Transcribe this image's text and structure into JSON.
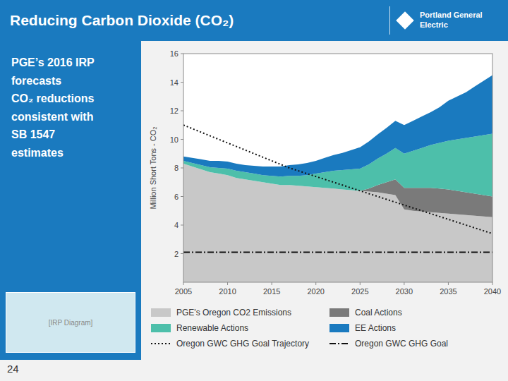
{
  "chart_data": {
    "type": "area",
    "stacked": true,
    "grid": false,
    "title": "Reducing Carbon Dioxide (CO₂)",
    "ylabel": "Million Short Tons - CO₂",
    "annotations": [
      "Portland General Electric",
      "PGE’s 2016 IRP\nforecasts\nCO₂ reductions\nconsistent with\nSB 1547\nestimates",
      "[IRP Diagram]",
      "24"
    ],
    "x": [
      2005,
      2006,
      2007,
      2008,
      2009,
      2010,
      2011,
      2012,
      2013,
      2014,
      2015,
      2016,
      2017,
      2018,
      2019,
      2020,
      2021,
      2022,
      2023,
      2024,
      2025,
      2026,
      2027,
      2028,
      2029,
      2030,
      2031,
      2032,
      2033,
      2034,
      2035,
      2036,
      2037,
      2038,
      2039,
      2040
    ],
    "xlim": [
      2005,
      2040
    ],
    "xticks": [
      2005,
      2010,
      2015,
      2020,
      2025,
      2030,
      2035,
      2040
    ],
    "ylim": [
      0,
      16
    ],
    "yticks": [
      2,
      4,
      6,
      8,
      10,
      12,
      14,
      16
    ],
    "series": [
      {
        "name": "PGE's Oregon CO2 Emissions",
        "type": "area",
        "color": "#c8c8c8",
        "values": [
          8.3,
          8.1,
          7.9,
          7.7,
          7.6,
          7.5,
          7.3,
          7.2,
          7.1,
          7.0,
          6.9,
          6.8,
          6.8,
          6.75,
          6.7,
          6.65,
          6.6,
          6.55,
          6.5,
          6.45,
          6.4,
          6.35,
          6.3,
          6.2,
          6.1,
          5.1,
          5.0,
          4.95,
          4.9,
          4.85,
          4.8,
          4.75,
          4.7,
          4.65,
          4.6,
          4.55
        ]
      },
      {
        "name": "Coal Actions",
        "type": "area",
        "color": "#7a7a7a",
        "values": [
          0,
          0,
          0,
          0,
          0,
          0,
          0,
          0,
          0,
          0,
          0,
          0,
          0,
          0,
          0,
          0,
          0,
          0,
          0,
          0,
          0,
          0.2,
          0.5,
          0.8,
          1.1,
          1.5,
          1.6,
          1.65,
          1.7,
          1.7,
          1.7,
          1.65,
          1.6,
          1.55,
          1.5,
          1.45
        ]
      },
      {
        "name": "Renewable Actions",
        "type": "area",
        "color": "#4dbfaa",
        "values": [
          0.2,
          0.25,
          0.3,
          0.35,
          0.4,
          0.45,
          0.5,
          0.5,
          0.5,
          0.5,
          0.55,
          0.6,
          0.65,
          0.7,
          0.8,
          0.95,
          1.1,
          1.25,
          1.35,
          1.45,
          1.55,
          1.7,
          1.85,
          2.0,
          2.2,
          2.4,
          2.6,
          2.8,
          3.0,
          3.2,
          3.4,
          3.6,
          3.8,
          4.0,
          4.2,
          4.4
        ]
      },
      {
        "name": "EE Actions",
        "type": "area",
        "color": "#1a7abf",
        "values": [
          0.3,
          0.35,
          0.4,
          0.45,
          0.5,
          0.5,
          0.5,
          0.5,
          0.55,
          0.6,
          0.65,
          0.7,
          0.75,
          0.8,
          0.85,
          0.9,
          1.0,
          1.1,
          1.2,
          1.35,
          1.5,
          1.6,
          1.7,
          1.8,
          1.9,
          2.0,
          2.1,
          2.2,
          2.3,
          2.5,
          2.8,
          3.0,
          3.2,
          3.5,
          3.8,
          4.1
        ]
      },
      {
        "name": "Oregon GWC GHG Goal Trajectory",
        "type": "line",
        "line_style": "dotted",
        "color": "#111111",
        "values": [
          11.0,
          10.75,
          10.5,
          10.25,
          10.0,
          9.75,
          9.5,
          9.25,
          9.0,
          8.75,
          8.5,
          8.25,
          8.0,
          7.8,
          7.6,
          7.4,
          7.2,
          7.0,
          6.8,
          6.6,
          6.4,
          6.2,
          6.0,
          5.8,
          5.6,
          5.4,
          5.2,
          5.0,
          4.8,
          4.6,
          4.4,
          4.2,
          4.0,
          3.8,
          3.6,
          3.4
        ]
      },
      {
        "name": "Oregon GWC GHG Goal",
        "type": "hline",
        "line_style": "dashdot",
        "color": "#111111",
        "value": 2.1
      }
    ]
  }
}
